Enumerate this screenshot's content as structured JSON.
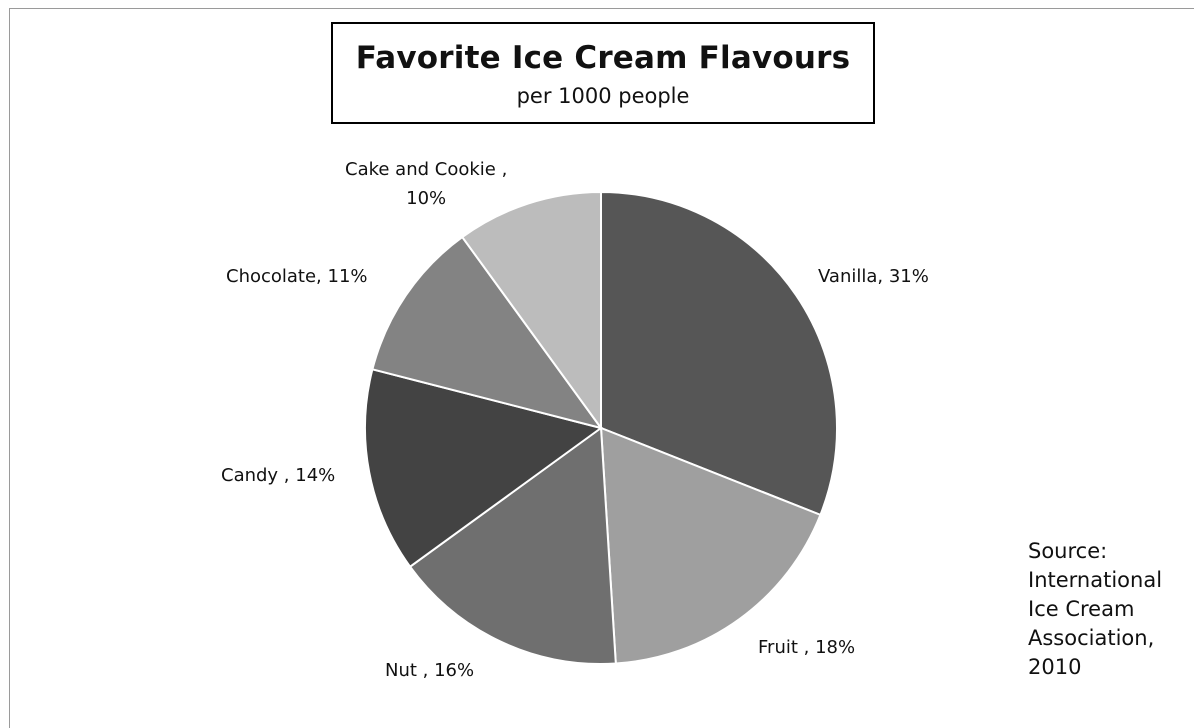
{
  "chart_data": {
    "type": "pie",
    "title": "Favorite Ice Cream Flavours",
    "subtitle": "per 1000 people",
    "slices": [
      {
        "label": "Vanilla",
        "value": 31,
        "display": "Vanilla, 31%",
        "color": "#565656"
      },
      {
        "label": "Fruit",
        "value": 18,
        "display": "Fruit , 18%",
        "color": "#9f9f9f"
      },
      {
        "label": "Nut",
        "value": 16,
        "display": "Nut , 16%",
        "color": "#6f6f6f"
      },
      {
        "label": "Candy",
        "value": 14,
        "display": "Candy , 14%",
        "color": "#434343"
      },
      {
        "label": "Chocolate",
        "value": 11,
        "display": "Chocolate, 11%",
        "color": "#838383"
      },
      {
        "label": "Cake and Cookie",
        "value": 10,
        "display": "Cake and Cookie ,\n10%",
        "color": "#bcbcbc"
      }
    ],
    "source": "Source:\nInternational\nIce Cream\nAssociation,\n2010"
  }
}
